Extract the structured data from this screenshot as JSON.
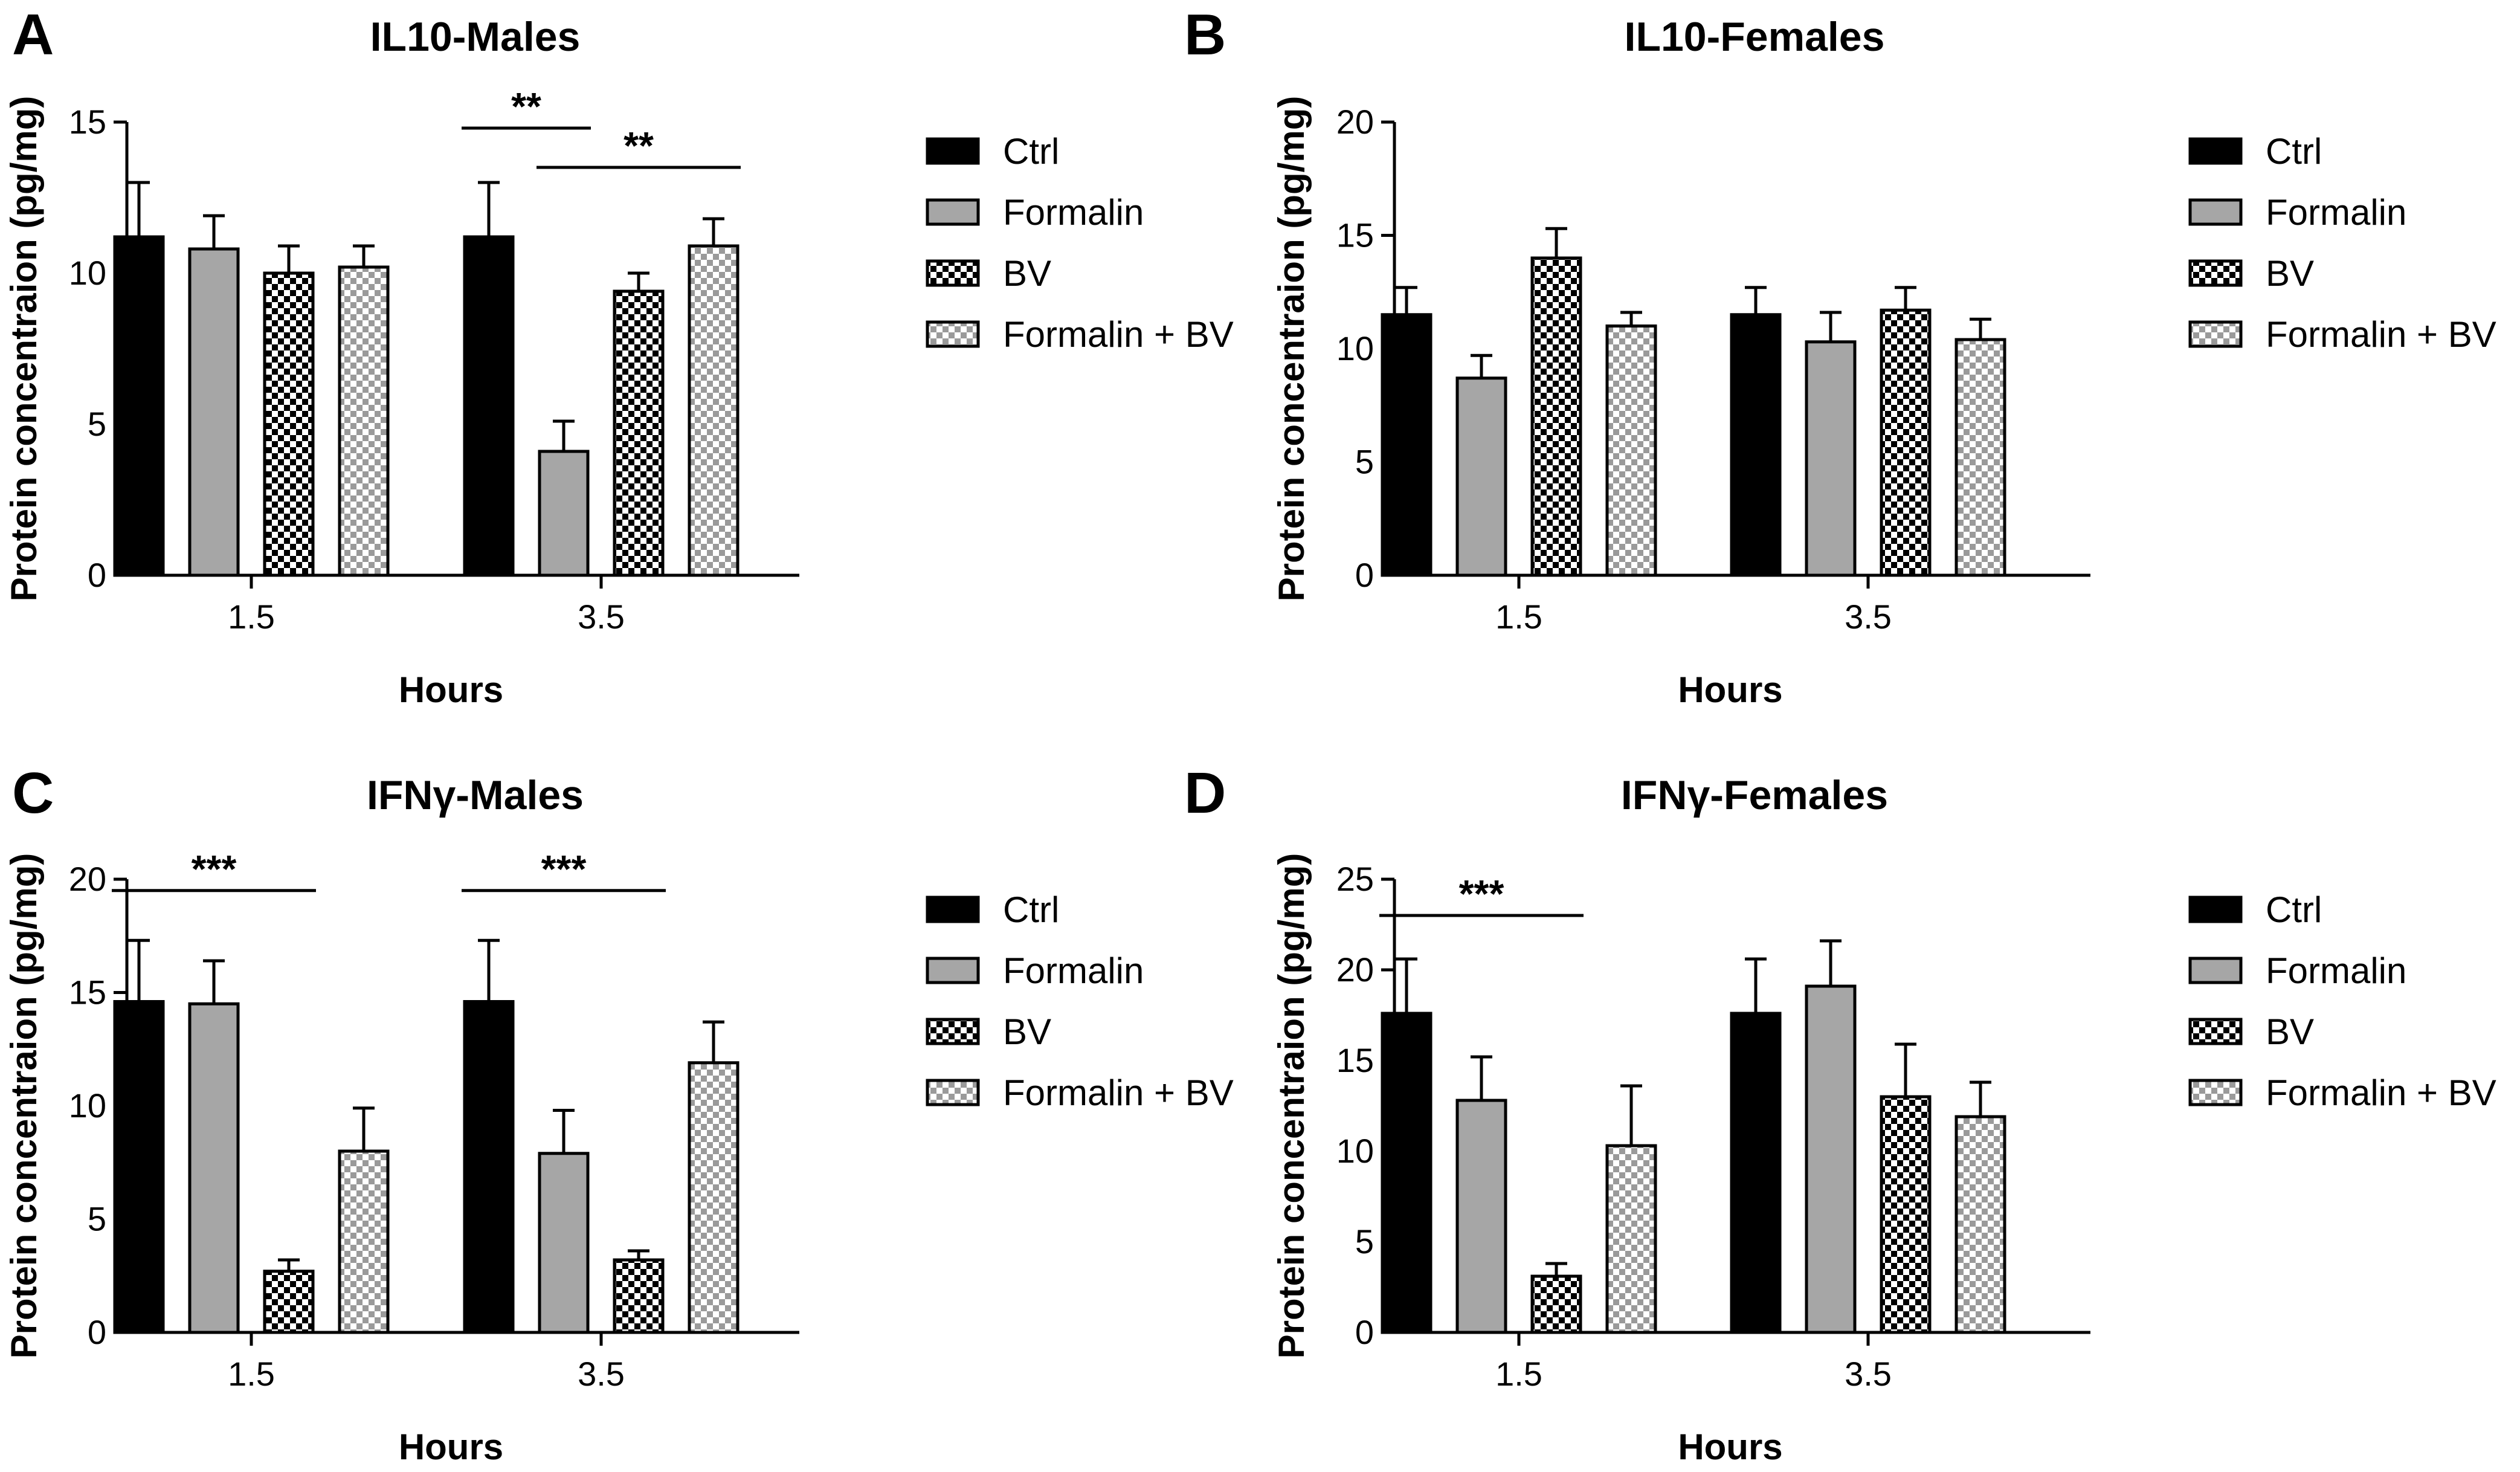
{
  "figure": {
    "series_styles": [
      {
        "name": "Ctrl",
        "fill": "#000000",
        "pattern": "solid"
      },
      {
        "name": "Formalin",
        "fill": "#a6a6a6",
        "pattern": "solid"
      },
      {
        "name": "BV",
        "fill": "#000000",
        "pattern": "checker-dark"
      },
      {
        "name": "Formalin + BV",
        "fill": "#b0b0b0",
        "pattern": "checker-light"
      }
    ]
  },
  "chart_data": [
    {
      "panel": "A",
      "type": "bar",
      "title": "IL10-Males",
      "xlabel": "Hours",
      "ylabel": "Protein concentraion (pg/mg)",
      "categories": [
        "1.5",
        "3.5"
      ],
      "ylim": [
        0,
        15
      ],
      "yticks": [
        "0",
        "5",
        "10",
        "15"
      ],
      "legend": "right",
      "series": [
        {
          "name": "Ctrl",
          "values": [
            11.2,
            11.2
          ],
          "errors": [
            1.8,
            1.8
          ]
        },
        {
          "name": "Formalin",
          "values": [
            10.8,
            4.1
          ],
          "errors": [
            1.1,
            1.0
          ]
        },
        {
          "name": "BV",
          "values": [
            10.0,
            9.4
          ],
          "errors": [
            0.9,
            0.6
          ]
        },
        {
          "name": "Formalin + BV",
          "values": [
            10.2,
            10.9
          ],
          "errors": [
            0.7,
            0.9
          ]
        }
      ],
      "significance": [
        {
          "label": "**",
          "category": 1,
          "from": 0,
          "to": 1,
          "y": 14.8
        },
        {
          "label": "**",
          "category": 1,
          "from": 1,
          "to": 3,
          "y": 13.5
        }
      ]
    },
    {
      "panel": "B",
      "type": "bar",
      "title": "IL10-Females",
      "xlabel": "Hours",
      "ylabel": "Protein concentraion (pg/mg)",
      "categories": [
        "1.5",
        "3.5"
      ],
      "ylim": [
        0,
        20
      ],
      "yticks": [
        "0",
        "5",
        "10",
        "15",
        "20"
      ],
      "legend": "right",
      "series": [
        {
          "name": "Ctrl",
          "values": [
            11.5,
            11.5
          ],
          "errors": [
            1.2,
            1.2
          ]
        },
        {
          "name": "Formalin",
          "values": [
            8.7,
            10.3
          ],
          "errors": [
            1.0,
            1.3
          ]
        },
        {
          "name": "BV",
          "values": [
            14.0,
            11.7
          ],
          "errors": [
            1.3,
            1.0
          ]
        },
        {
          "name": "Formalin + BV",
          "values": [
            11.0,
            10.4
          ],
          "errors": [
            0.6,
            0.9
          ]
        }
      ],
      "significance": []
    },
    {
      "panel": "C",
      "type": "bar",
      "title": "IFNγ-Males",
      "xlabel": "Hours",
      "ylabel": "Protein concentraion (pg/mg)",
      "categories": [
        "1.5",
        "3.5"
      ],
      "ylim": [
        0,
        20
      ],
      "yticks": [
        "0",
        "5",
        "10",
        "15",
        "20"
      ],
      "legend": "right",
      "series": [
        {
          "name": "Ctrl",
          "values": [
            14.6,
            14.6
          ],
          "errors": [
            2.7,
            2.7
          ]
        },
        {
          "name": "Formalin",
          "values": [
            14.5,
            7.9
          ],
          "errors": [
            1.9,
            1.9
          ]
        },
        {
          "name": "BV",
          "values": [
            2.7,
            3.2
          ],
          "errors": [
            0.5,
            0.4
          ]
        },
        {
          "name": "Formalin + BV",
          "values": [
            8.0,
            11.9
          ],
          "errors": [
            1.9,
            1.8
          ]
        }
      ],
      "significance": [
        {
          "label": "***",
          "category": 0,
          "from": 0,
          "to": 2,
          "y": 19.5
        },
        {
          "label": "***",
          "category": 1,
          "from": 0,
          "to": 2,
          "y": 19.5
        }
      ]
    },
    {
      "panel": "D",
      "type": "bar",
      "title": "IFNγ-Females",
      "xlabel": "Hours",
      "ylabel": "Protein concentraion (pg/mg)",
      "categories": [
        "1.5",
        "3.5"
      ],
      "ylim": [
        0,
        25
      ],
      "yticks": [
        "0",
        "5",
        "10",
        "15",
        "20",
        "25"
      ],
      "legend": "right",
      "series": [
        {
          "name": "Ctrl",
          "values": [
            17.6,
            17.6
          ],
          "errors": [
            3.0,
            3.0
          ]
        },
        {
          "name": "Formalin",
          "values": [
            12.8,
            19.1
          ],
          "errors": [
            2.4,
            2.5
          ]
        },
        {
          "name": "BV",
          "values": [
            3.1,
            13.0
          ],
          "errors": [
            0.7,
            2.9
          ]
        },
        {
          "name": "Formalin + BV",
          "values": [
            10.3,
            11.9
          ],
          "errors": [
            3.3,
            1.9
          ]
        }
      ],
      "significance": [
        {
          "label": "***",
          "category": 0,
          "from": 0,
          "to": 2,
          "y": 23.0
        }
      ]
    }
  ]
}
